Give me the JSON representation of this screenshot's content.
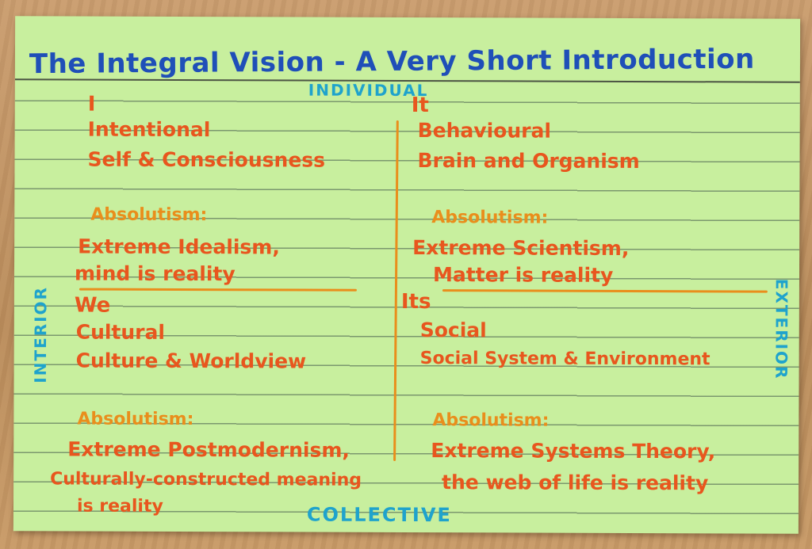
{
  "card": {
    "title": "The Integral Vision - A Very Short Introduction",
    "axis_top": "INDIVIDUAL",
    "axis_bottom": "COLLECTIVE",
    "axis_left": "INTERIOR",
    "axis_right": "EXTERIOR"
  },
  "quadrants": {
    "upper_left": {
      "heading": "I",
      "line1": "Intentional",
      "line2": "Self & Consciousness",
      "absolutism_label": "Absolutism:",
      "abs_line1": "Extreme Idealism,",
      "abs_line2": "mind is reality"
    },
    "upper_right": {
      "heading": "It",
      "line1": "Behavioural",
      "line2": "Brain and Organism",
      "absolutism_label": "Absolutism:",
      "abs_line1": "Extreme Scientism,",
      "abs_line2": "Matter is reality"
    },
    "lower_left": {
      "heading": "We",
      "line1": "Cultural",
      "line2": "Culture & Worldview",
      "absolutism_label": "Absolutism:",
      "abs_line1": "Extreme Postmodernism,",
      "abs_line2": "Culturally-constructed meaning",
      "abs_line3": "is reality"
    },
    "lower_right": {
      "heading": "Its",
      "line1": "Social",
      "line2": "Social System & Environment",
      "absolutism_label": "Absolutism:",
      "abs_line1": "Extreme Systems Theory,",
      "abs_line2": "the web of life is reality"
    }
  },
  "colors": {
    "card": "#c8ef9e",
    "title_ink": "#1f4fb8",
    "axis_ink": "#1fa3cc",
    "quadrant_ink": "#e8561e",
    "absolutism_ink": "#e98e1c"
  }
}
